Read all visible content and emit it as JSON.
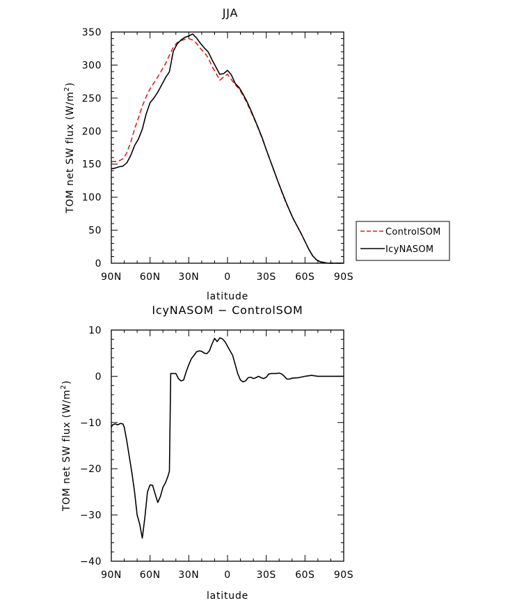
{
  "chart_data": [
    {
      "type": "line",
      "title": "JJA",
      "xlabel": "latitude",
      "ylabel": "TOM net SW flux (W/m²)",
      "ylabel_main": "TOM net SW flux (W/m",
      "ylabel_sup": "2",
      "ylabel_end": ")",
      "xlim": [
        90,
        -90
      ],
      "ylim": [
        0,
        350
      ],
      "x_ticks": [
        90,
        60,
        30,
        0,
        -30,
        -60,
        -90
      ],
      "x_tick_labels": [
        "90N",
        "60N",
        "30N",
        "0",
        "30S",
        "60S",
        "90S"
      ],
      "y_ticks": [
        0,
        50,
        100,
        150,
        200,
        250,
        300,
        350
      ],
      "y_tick_labels": [
        "0",
        "50",
        "100",
        "150",
        "200",
        "250",
        "300",
        "350"
      ],
      "grid": false,
      "legend_position": "right",
      "series": [
        {
          "name": "ControlSOM",
          "color": "#e41a1c",
          "style": "dashed",
          "x": [
            90,
            87,
            84,
            81,
            78,
            75,
            72,
            69,
            66,
            63,
            60,
            57,
            54,
            51,
            48,
            45,
            42,
            39,
            36,
            33,
            30,
            27,
            24,
            21,
            18,
            15,
            12,
            9,
            6,
            3,
            0,
            -3,
            -6,
            -9,
            -12,
            -15,
            -18,
            -21,
            -24,
            -27,
            -30,
            -33,
            -36,
            -39,
            -42,
            -45,
            -48,
            -51,
            -54,
            -57,
            -60,
            -63,
            -66,
            -69,
            -72,
            -75,
            -78,
            -81,
            -84,
            -87,
            -90
          ],
          "values": [
            154,
            154,
            155,
            158,
            167,
            183,
            203,
            220,
            238,
            252,
            264,
            273,
            282,
            292,
            302,
            315,
            327,
            334,
            337,
            339,
            340,
            338,
            333,
            325,
            319,
            311,
            298,
            288,
            277,
            282,
            286,
            278,
            270,
            264,
            254,
            243,
            230,
            217,
            203,
            188,
            172,
            156,
            140,
            124,
            108,
            93,
            80,
            67,
            56,
            45,
            33,
            21,
            11,
            5,
            2,
            1,
            0,
            0,
            0,
            0,
            0
          ]
        },
        {
          "name": "IcyNASOM",
          "color": "#000000",
          "style": "solid",
          "x": [
            90,
            87,
            84,
            81,
            78,
            75,
            72,
            69,
            66,
            63,
            60,
            57,
            54,
            51,
            48,
            45,
            42,
            39,
            36,
            33,
            30,
            27,
            24,
            21,
            18,
            15,
            12,
            9,
            6,
            3,
            0,
            -3,
            -6,
            -9,
            -12,
            -15,
            -18,
            -21,
            -24,
            -27,
            -30,
            -33,
            -36,
            -39,
            -42,
            -45,
            -48,
            -51,
            -54,
            -57,
            -60,
            -63,
            -66,
            -69,
            -72,
            -75,
            -78,
            -81,
            -84,
            -87,
            -90
          ],
          "values": [
            143,
            144,
            146,
            147,
            152,
            163,
            178,
            188,
            203,
            226,
            243,
            250,
            259,
            270,
            281,
            290,
            321,
            332,
            338,
            342,
            344,
            347,
            341,
            333,
            326,
            320,
            308,
            297,
            286,
            287,
            292,
            285,
            272,
            266,
            256,
            245,
            232,
            218,
            204,
            189,
            172,
            156,
            140,
            124,
            109,
            94,
            80,
            67,
            56,
            45,
            33,
            21,
            11,
            5,
            2,
            1,
            0,
            0,
            0,
            0,
            0
          ]
        }
      ]
    },
    {
      "type": "line",
      "title": "IcyNASOM − ControlSOM",
      "xlabel": "latitude",
      "ylabel": "TOM net SW flux (W/m²)",
      "ylabel_main": "TOM net SW flux (W/m",
      "ylabel_sup": "2",
      "ylabel_end": ")",
      "xlim": [
        90,
        -90
      ],
      "ylim": [
        -40,
        10
      ],
      "x_ticks": [
        90,
        60,
        30,
        0,
        -30,
        -60,
        -90
      ],
      "x_tick_labels": [
        "90N",
        "60N",
        "30N",
        "0",
        "30S",
        "60S",
        "90S"
      ],
      "y_ticks": [
        -40,
        -30,
        -20,
        -10,
        0,
        10
      ],
      "y_tick_labels": [
        "−40",
        "−30",
        "−20",
        "−10",
        "0",
        "10"
      ],
      "grid": false,
      "series": [
        {
          "color": "#000000",
          "style": "solid",
          "x": [
            90,
            89,
            87,
            85,
            83,
            81,
            80,
            78,
            76,
            74,
            72,
            70,
            68,
            66,
            64,
            62,
            60,
            58,
            56,
            54,
            52,
            50,
            48,
            46,
            45,
            44,
            42,
            40,
            38,
            36,
            34,
            32,
            30,
            28,
            26,
            24,
            22,
            20,
            18,
            16,
            14,
            12,
            10,
            8,
            6,
            4,
            2,
            0,
            -2,
            -4,
            -6,
            -8,
            -10,
            -12,
            -14,
            -16,
            -18,
            -20,
            -22,
            -24,
            -26,
            -28,
            -30,
            -32,
            -34,
            -36,
            -38,
            -40,
            -42,
            -44,
            -46,
            -48,
            -50,
            -55,
            -60,
            -65,
            -70,
            -75,
            -80,
            -85,
            -90
          ],
          "values": [
            -11,
            -10.5,
            -10.3,
            -10.5,
            -10.2,
            -10.3,
            -11,
            -14,
            -17.5,
            -21,
            -25,
            -30,
            -32,
            -35,
            -30.5,
            -25,
            -23.5,
            -23.6,
            -25.5,
            -27.3,
            -26,
            -24,
            -23,
            -21.5,
            -20.5,
            0.6,
            0.6,
            0.6,
            -0.5,
            -1,
            -0.8,
            1,
            2.5,
            3.8,
            4.5,
            5.3,
            5.5,
            5.4,
            5.0,
            4.9,
            5.5,
            7.0,
            8.2,
            7.5,
            8.3,
            8.1,
            7.5,
            6.5,
            5.5,
            4.5,
            2.5,
            0.5,
            -0.8,
            -1.2,
            -1.0,
            -0.3,
            -0.2,
            -0.5,
            -0.3,
            0.0,
            -0.3,
            -0.5,
            -0.2,
            0.5,
            0.6,
            0.6,
            0.6,
            0.7,
            0.5,
            0.0,
            -0.6,
            -0.6,
            -0.4,
            -0.3,
            0.0,
            0.2,
            0.0,
            0.0,
            0.0,
            0.0,
            0.0
          ]
        }
      ]
    }
  ]
}
